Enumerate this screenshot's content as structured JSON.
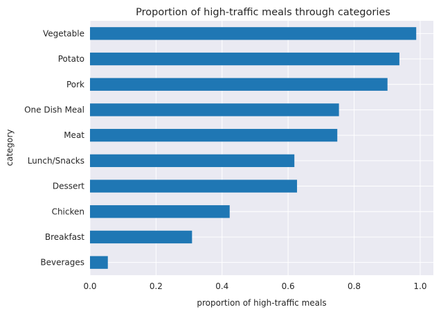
{
  "chart_data": {
    "type": "bar",
    "orientation": "horizontal",
    "title": "Proportion of high-traffic meals through categories",
    "xlabel": "proportion of high-traffic meals",
    "ylabel": "category",
    "categories": [
      "Vegetable",
      "Potato",
      "Pork",
      "One Dish Meal",
      "Meat",
      "Lunch/Snacks",
      "Dessert",
      "Chicken",
      "Breakfast",
      "Beverages"
    ],
    "values": [
      0.988,
      0.937,
      0.901,
      0.754,
      0.749,
      0.619,
      0.627,
      0.423,
      0.309,
      0.054
    ],
    "xlim": [
      0,
      1.04
    ],
    "xticks": [
      0.0,
      0.2,
      0.4,
      0.6,
      0.8,
      1.0
    ],
    "xtick_labels": [
      "0.0",
      "0.2",
      "0.4",
      "0.6",
      "0.8",
      "1.0"
    ],
    "grid": true,
    "bar_color": "#1f77b4",
    "background_color": "#eaeaf2",
    "grid_color": "#ffffff"
  }
}
